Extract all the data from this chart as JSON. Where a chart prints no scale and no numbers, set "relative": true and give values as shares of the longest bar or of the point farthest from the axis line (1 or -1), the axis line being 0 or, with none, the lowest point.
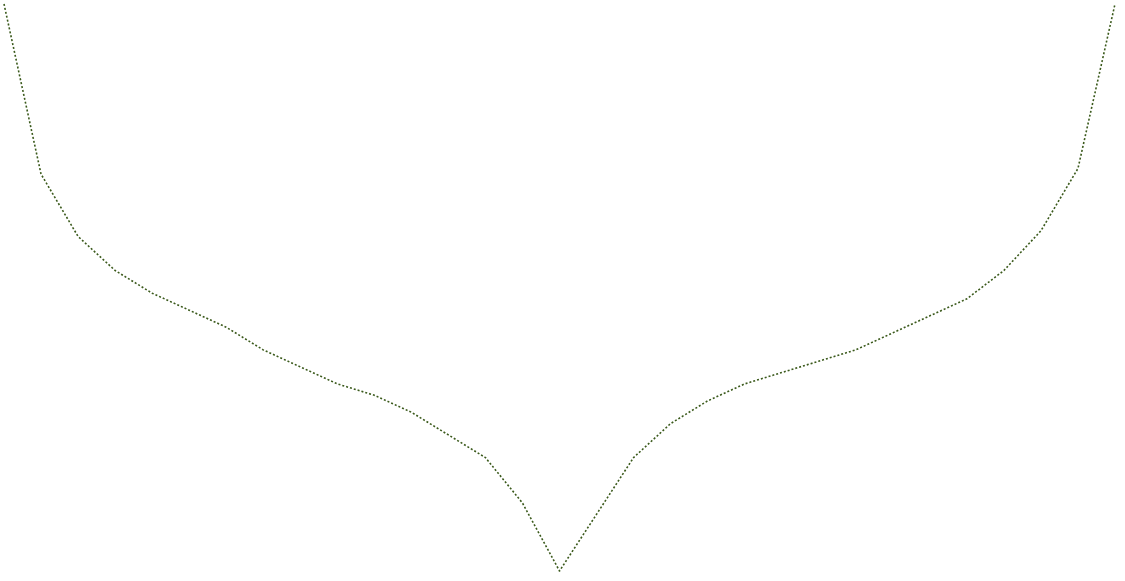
{
  "chart_data": {
    "type": "line",
    "relative": true,
    "line_style": "dotted",
    "marker": "none",
    "categories": [
      null,
      null,
      null,
      null,
      null,
      null,
      null,
      null,
      null,
      null,
      null,
      null,
      null,
      null,
      null,
      null,
      null,
      null,
      null,
      null,
      null,
      null,
      null,
      null,
      null,
      null,
      null,
      null,
      null,
      null,
      null
    ],
    "series": [
      {
        "color": "#3b5a1c",
        "values": [
          1.0,
          0.7,
          0.59,
          0.53,
          0.49,
          0.46,
          0.43,
          0.39,
          0.36,
          0.33,
          0.31,
          0.28,
          0.24,
          0.2,
          0.12,
          0.0,
          0.1,
          0.2,
          0.26,
          0.3,
          0.33,
          0.35,
          0.37,
          0.39,
          0.42,
          0.45,
          0.48,
          0.53,
          0.6,
          0.71,
          1.0
        ]
      }
    ]
  }
}
